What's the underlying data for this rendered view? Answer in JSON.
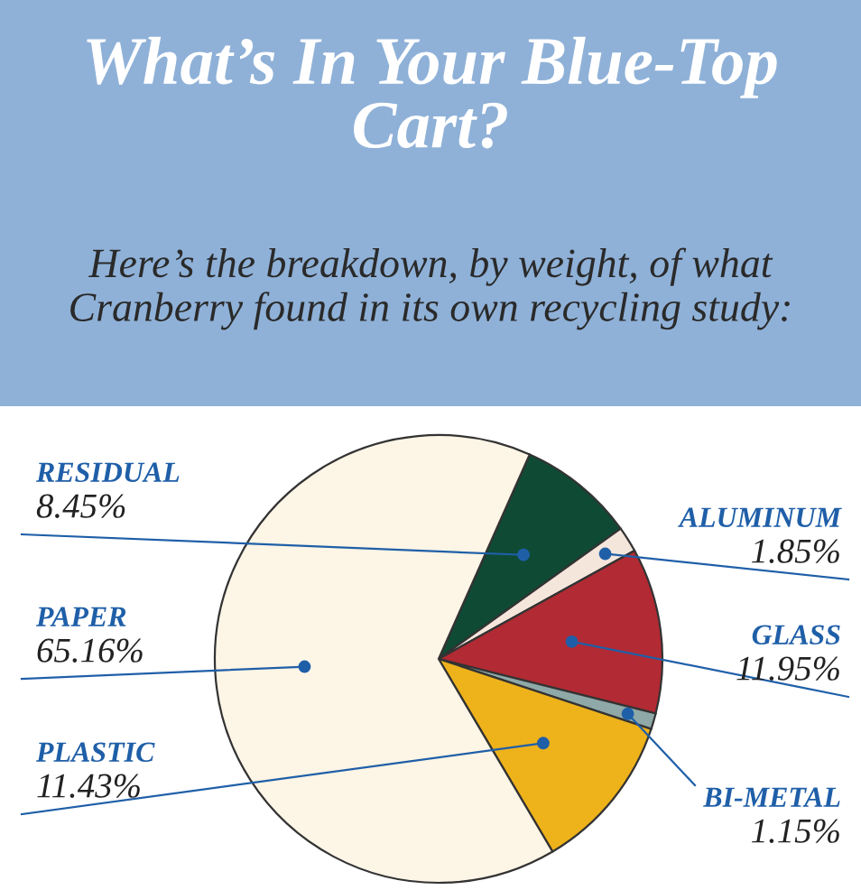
{
  "chart_data": {
    "type": "pie",
    "title": "What’s In Your Blue-Top Cart?",
    "subtitle": "Here’s the breakdown, by weight, of what Cranberry found in its own recycling study:",
    "categories": [
      "RESIDUAL",
      "ALUMINUM",
      "GLASS",
      "BI-METAL",
      "PLASTIC",
      "PAPER"
    ],
    "values": [
      8.45,
      1.85,
      11.95,
      1.15,
      11.43,
      65.16
    ],
    "value_labels": [
      "8.45%",
      "1.85%",
      "11.95%",
      "1.15%",
      "11.43%",
      "65.16%"
    ],
    "colors": [
      "#0f4a35",
      "#f5e6dc",
      "#b22a33",
      "#8fa8a8",
      "#eeb21b",
      "#fdf5e6"
    ]
  }
}
